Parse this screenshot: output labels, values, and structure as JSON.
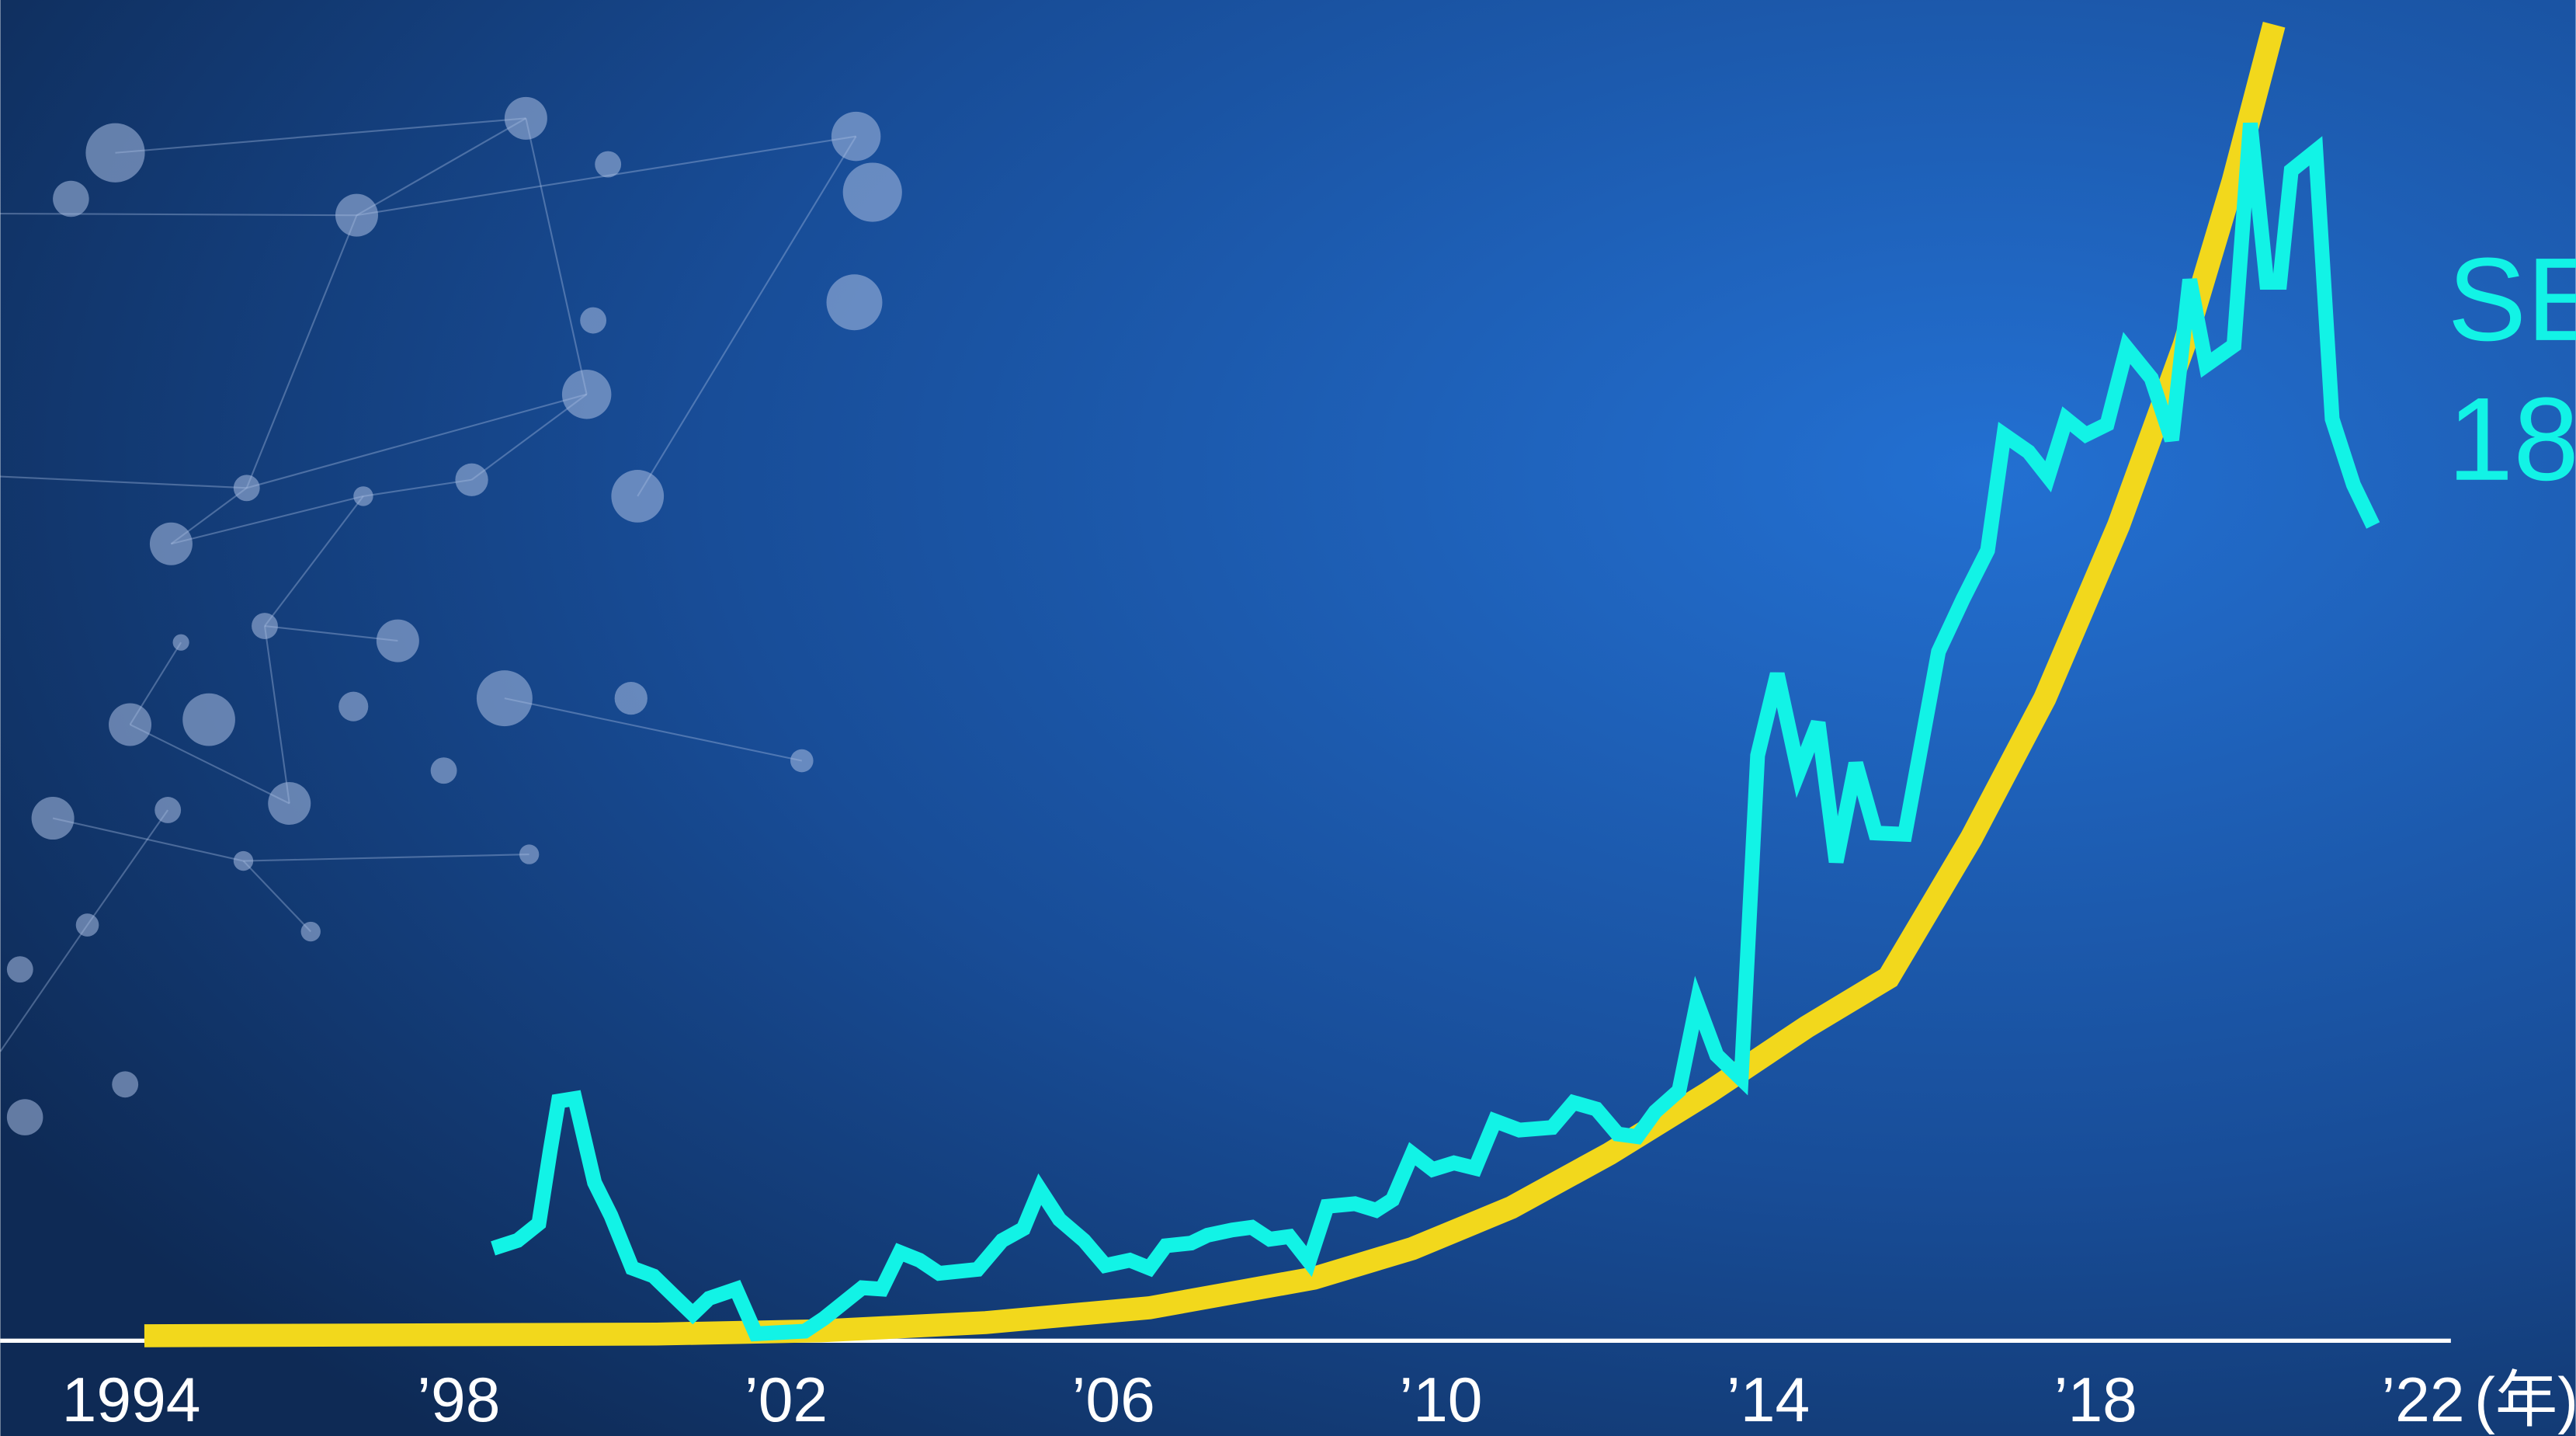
{
  "chart_data": {
    "type": "line",
    "xlim": [
      1992.4,
      2022.3
    ],
    "ylim": [
      0,
      100
    ],
    "xticks": [
      1994,
      {
        "value": 1998,
        "label": "’98"
      },
      {
        "value": 2002,
        "label": "’02"
      },
      {
        "value": 2006,
        "label": "’06"
      },
      {
        "value": 2010,
        "label": "’10"
      },
      {
        "value": 2014,
        "label": "’14"
      },
      {
        "value": 2018,
        "label": "’18"
      },
      {
        "value": 2022,
        "label": "’22"
      }
    ],
    "x_unit_label": "(年)",
    "annotations": [
      "SE",
      "18"
    ],
    "series": [
      {
        "color": "#f2d81c",
        "x": [
          1994.16,
          2000.42,
          2002.43,
          2004.44,
          2006.44,
          2008.45,
          2009.65,
          2010.86,
          2012.06,
          2013.27,
          2014.47,
          2015.47,
          2016.48,
          2017.38,
          2018.28,
          2019.08,
          2019.68,
          2020.18
        ],
        "values": [
          0.25,
          0.38,
          0.63,
          1.25,
          2.38,
          4.63,
          6.88,
          10,
          14.1,
          18.75,
          23.75,
          27.5,
          38.1,
          48.75,
          61.9,
          75.6,
          88.1,
          100
        ]
      },
      {
        "color": "#12f3e6",
        "x": [
          1998.42,
          1998.72,
          1998.98,
          1999.12,
          1999.22,
          1999.42,
          1999.66,
          1999.86,
          2000.12,
          2000.38,
          2000.66,
          2000.86,
          2001.06,
          2001.39,
          2001.63,
          2002.23,
          2002.47,
          2002.73,
          2002.93,
          2003.17,
          2003.39,
          2003.63,
          2003.87,
          2004.34,
          2004.64,
          2004.9,
          2005.1,
          2005.34,
          2005.64,
          2005.9,
          2006.2,
          2006.44,
          2006.64,
          2006.95,
          2007.15,
          2007.45,
          2007.69,
          2007.91,
          2008.15,
          2008.39,
          2008.61,
          2008.95,
          2009.21,
          2009.41,
          2009.65,
          2009.9,
          2010.16,
          2010.42,
          2010.66,
          2010.96,
          2011.36,
          2011.62,
          2011.9,
          2012.16,
          2012.4,
          2012.62,
          2012.91,
          2013.13,
          2013.37,
          2013.67,
          2013.87,
          2014.11,
          2014.37,
          2014.61,
          2014.83,
          2015.07,
          2015.31,
          2015.67,
          2016.08,
          2016.38,
          2016.68,
          2016.88,
          2017.18,
          2017.42,
          2017.64,
          2017.88,
          2018.14,
          2018.38,
          2018.68,
          2018.93,
          2019.15,
          2019.35,
          2019.69,
          2019.89,
          2020.09,
          2020.25,
          2020.39,
          2020.69,
          2020.89,
          2021.15,
          2021.39
        ],
        "values": [
          6.9,
          7.5,
          8.8,
          14.4,
          18.1,
          18.3,
          11.9,
          9.4,
          5.4,
          4.8,
          3.1,
          1.9,
          3.1,
          3.8,
          0.4,
          0.6,
          1.6,
          2.9,
          3.9,
          3.8,
          6.6,
          6,
          5,
          5.3,
          7.5,
          8.4,
          11.4,
          9.1,
          7.5,
          5.6,
          6,
          5.4,
          7.1,
          7.3,
          7.9,
          8.3,
          8.5,
          7.6,
          7.8,
          5.9,
          10.1,
          10.3,
          9.8,
          10.6,
          14.1,
          12.9,
          13.4,
          13,
          16.6,
          15.9,
          16.1,
          18,
          17.5,
          15.6,
          15.4,
          17.3,
          18.9,
          25.6,
          21.6,
          19.8,
          44.4,
          50.6,
          43.1,
          46.9,
          36.3,
          43.8,
          38.5,
          38.4,
          52.3,
          56.3,
          60,
          68.8,
          67.5,
          65.6,
          70,
          68.8,
          69.6,
          75.4,
          73.1,
          68.4,
          80.6,
          74.1,
          75.6,
          92.5,
          80.4,
          80.4,
          88.9,
          90.4,
          70,
          65,
          61.9
        ]
      }
    ]
  }
}
